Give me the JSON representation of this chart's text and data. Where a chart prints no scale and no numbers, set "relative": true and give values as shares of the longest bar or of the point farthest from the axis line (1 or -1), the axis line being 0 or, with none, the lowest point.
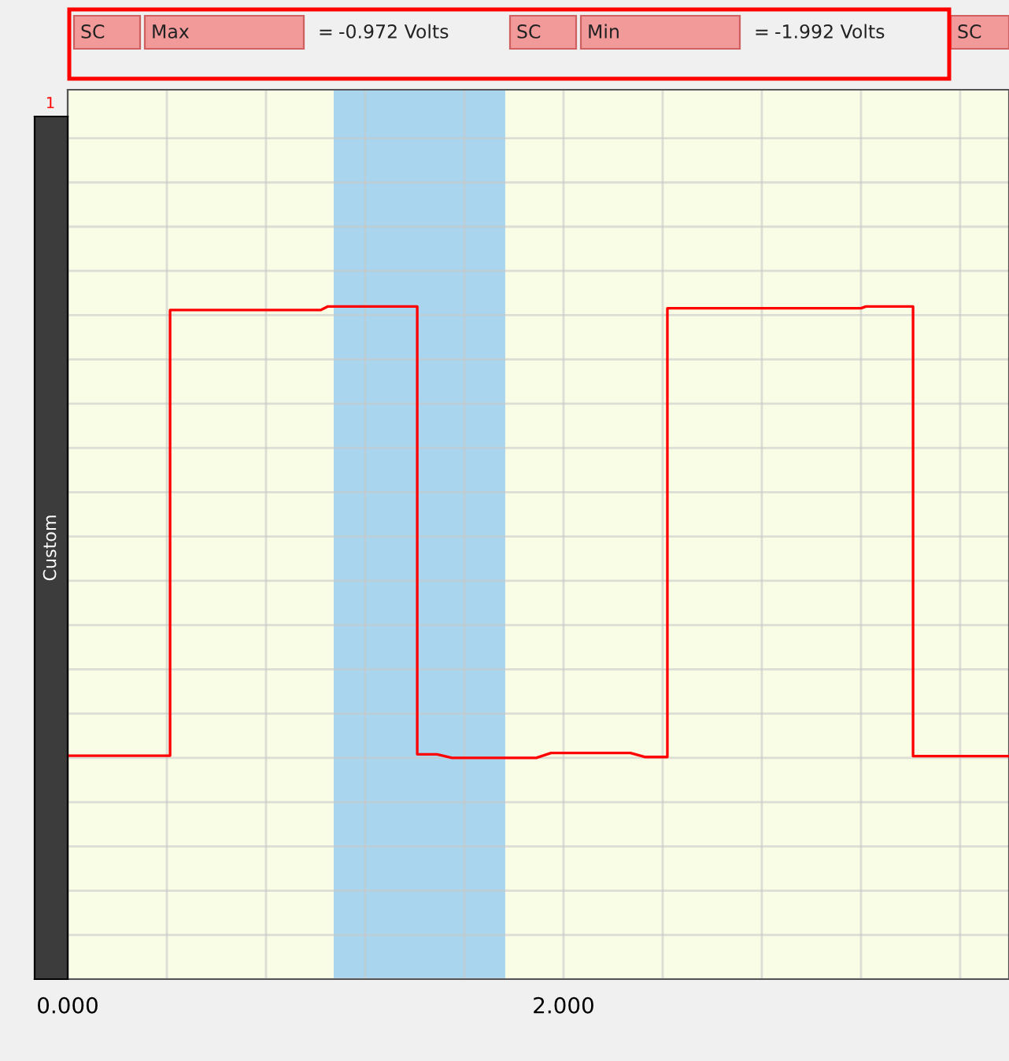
{
  "chart_data": {
    "type": "line",
    "ylabel": "Custom",
    "x": [
      0,
      0.39,
      0.413,
      0.413,
      1.02,
      1.05,
      1.41,
      1.41,
      1.49,
      1.55,
      1.89,
      1.95,
      2.27,
      2.33,
      2.419,
      2.419,
      3.2,
      3.22,
      3.41,
      3.41,
      3.797
    ],
    "series": [
      {
        "color": "#ff0000",
        "values": [
          0.005,
          0.005,
          0.005,
          0.992,
          0.992,
          1,
          1,
          0.008,
          0.008,
          0,
          0,
          0.011,
          0.011,
          0.002,
          0.002,
          0.996,
          0.996,
          1,
          1,
          0.004,
          0.004
        ]
      }
    ],
    "relative": true,
    "xlim": [
      0,
      3.797
    ],
    "xticks": [
      {
        "value": 0,
        "label": "0.000"
      },
      {
        "value": 0.4,
        "label": null
      },
      {
        "value": 0.8,
        "label": null
      },
      {
        "value": 1.2,
        "label": null
      },
      {
        "value": 1.6,
        "label": null
      },
      {
        "value": 2,
        "label": "2.000"
      },
      {
        "value": 2.4,
        "label": null
      },
      {
        "value": 2.8,
        "label": null
      },
      {
        "value": 3.2,
        "label": null
      },
      {
        "value": 3.6,
        "label": null
      }
    ],
    "tick_labels": "x",
    "grid": true,
    "bands": [
      {
        "axis": "x",
        "from": 1.073,
        "to": 1.765,
        "color": "#a9d6ee"
      }
    ],
    "annotations": [
      "SC",
      "Max",
      "=",
      "-0.972 Volts",
      "SC",
      "Min",
      "=",
      "-1.992 Volts",
      "SC",
      "1"
    ]
  }
}
